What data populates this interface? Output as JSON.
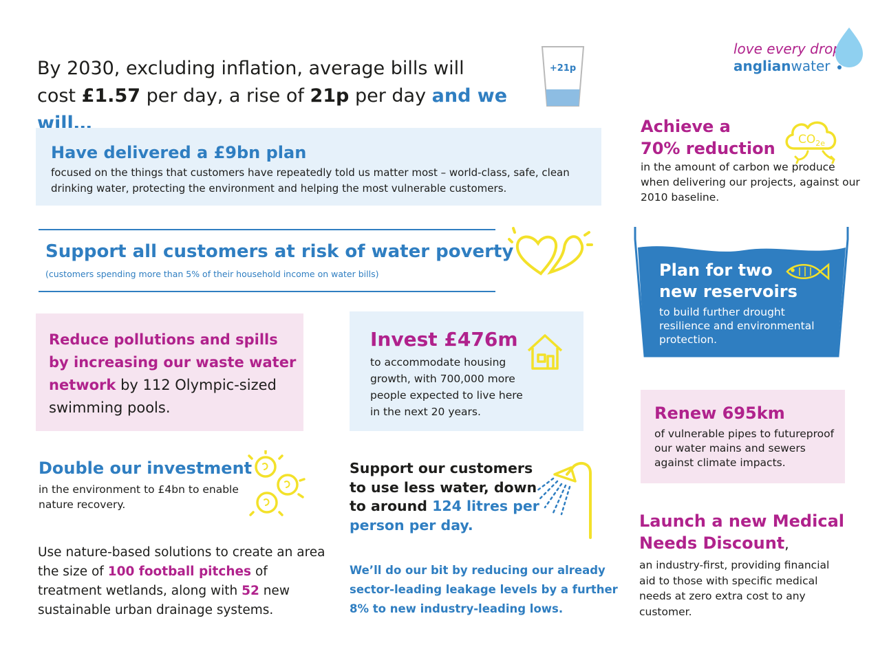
{
  "header": {
    "line1": "By 2030, excluding inflation, average bills will",
    "line2_pre": "cost ",
    "line2_amount": "£1.57",
    "line2_mid": " per day, a rise of ",
    "line2_rise": "21p",
    "line2_post": " per day ",
    "line2_tail": "and we will…",
    "glass_label": "+21p"
  },
  "logo": {
    "tagline": "love every drop",
    "brand_a": "anglian",
    "brand_b": "water"
  },
  "plan": {
    "title": "Have delivered a £9bn plan",
    "desc": "focused on the things that customers have repeatedly told us matter most – world-class, safe, clean drinking water, protecting the environment and helping the most vulnerable customers."
  },
  "poverty": {
    "title": "Support all customers at risk of water poverty",
    "desc": "(customers spending more than 5% of their household income on water bills)"
  },
  "pollution": {
    "bold": "Reduce pollutions and spills by increasing our waste water network",
    "rest": " by 112 Olympic-sized swimming pools."
  },
  "invest": {
    "title": "Invest £476m",
    "desc": "to accommodate housing growth, with 700,000 more people expected to live here in the next 20 years."
  },
  "double": {
    "title": "Double our investment",
    "desc": "in the environment to £4bn to enable nature recovery."
  },
  "nature": {
    "p1": "Use nature-based solutions to create an area the size of ",
    "h1": "100 football pitches",
    "p2": " of treatment wetlands, along with ",
    "h2": "52",
    "p3": " new sustainable urban drainage systems."
  },
  "less_water": {
    "pre": "Support our customers to use less water, down to around ",
    "highlight": "124 litres per person per day."
  },
  "leakage": {
    "text": "We’ll do our bit by reducing our already sector-leading leakage levels by a further 8% to new industry-leading lows."
  },
  "carbon": {
    "title_1": "Achieve a",
    "title_2": "70% reduction",
    "desc": "in the amount of carbon we produce when delivering our projects, against our 2010 baseline.",
    "icon_label": "CO",
    "icon_sub": "2e"
  },
  "reservoir": {
    "title_1": "Plan for two",
    "title_2": "new reservoirs",
    "desc": "to build further drought resilience and environmental protection."
  },
  "renew": {
    "title": "Renew 695km",
    "desc": "of vulnerable pipes to futureproof our water mains and sewers against climate impacts."
  },
  "medical": {
    "title": "Launch a new Medical Needs Discount",
    "comma": ",",
    "desc": "an industry-first, providing financial aid to those with specific medical needs at zero extra cost to any customer."
  },
  "colors": {
    "blue": "#2f7ec1",
    "purple": "#b0228c",
    "yellow": "#f3e12a",
    "light_blue": "#e6f1fa",
    "pink": "#f6e4f0"
  }
}
